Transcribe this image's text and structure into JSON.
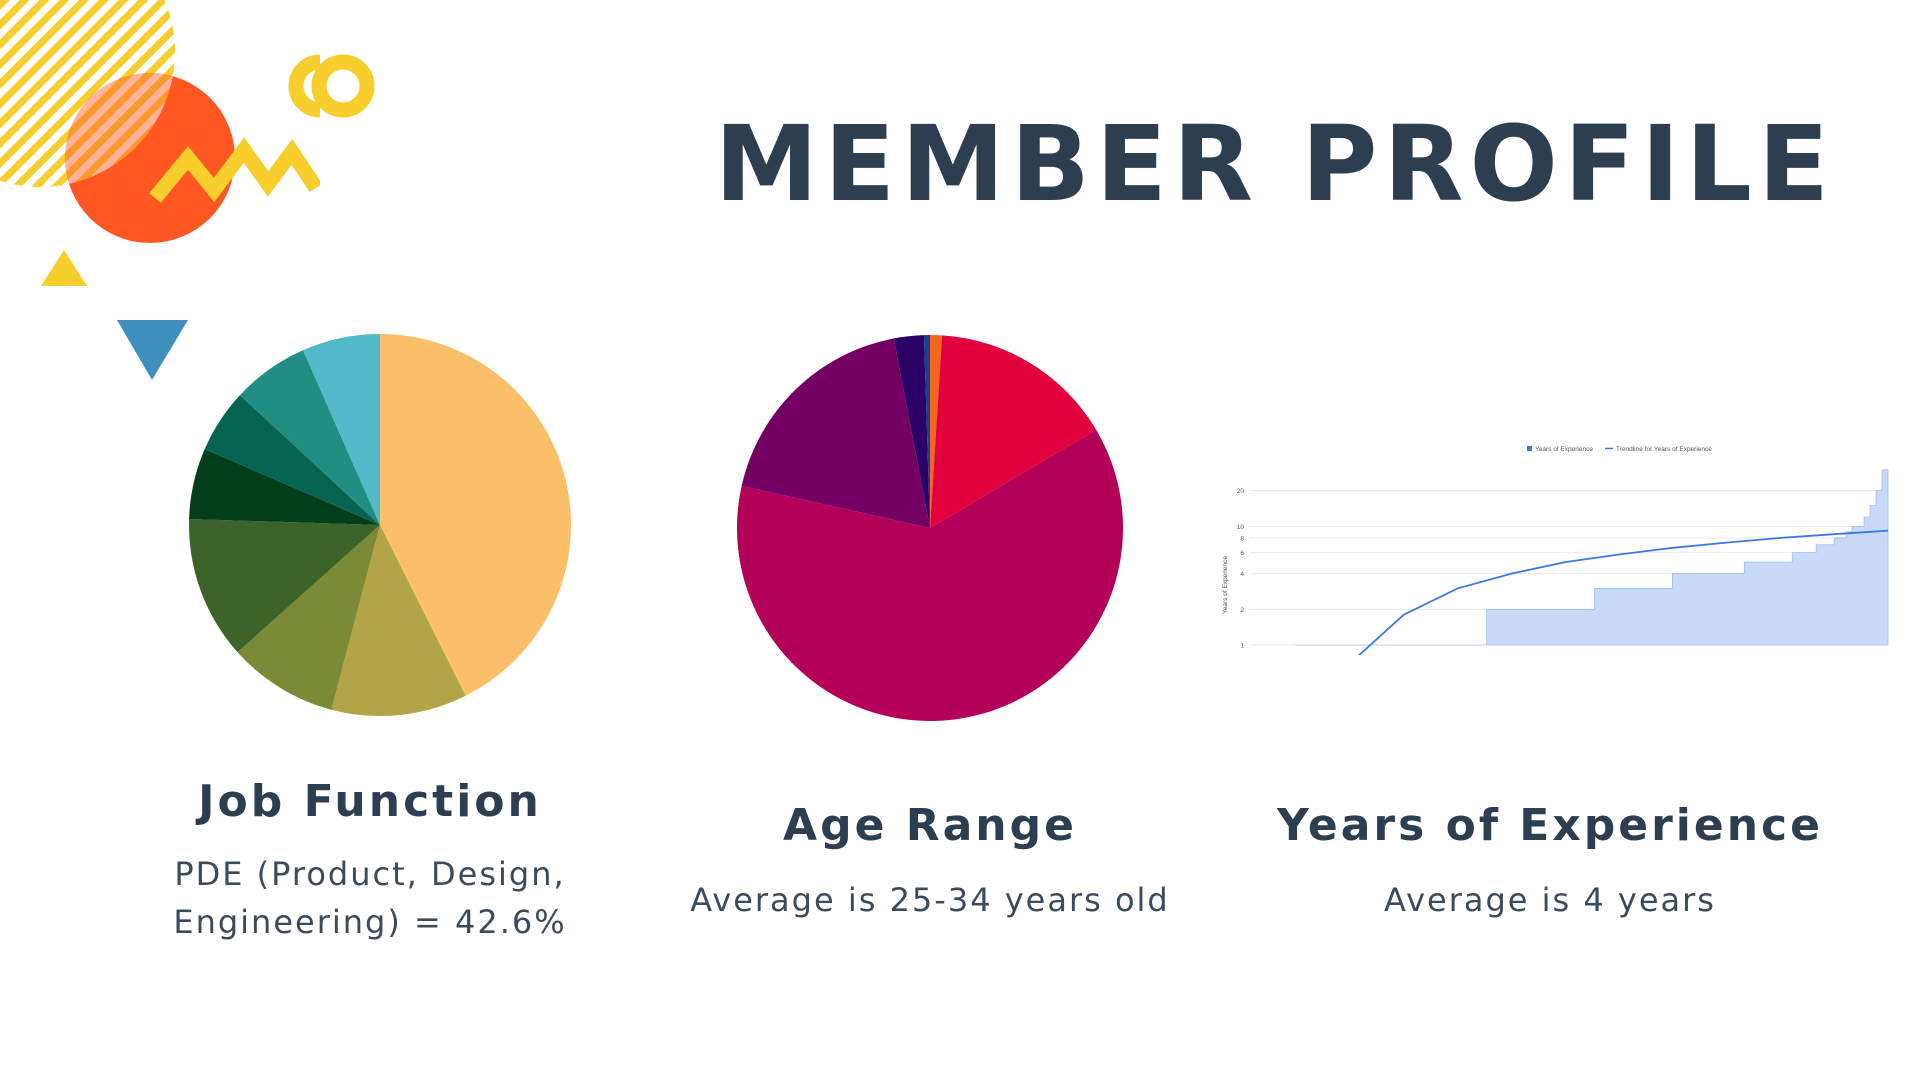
{
  "page": {
    "title": "MEMBER PROFILE",
    "accent_colors": [
      "#f7ce2c",
      "#ff5722",
      "#3f8fbf",
      "#2d3e50"
    ]
  },
  "sections": [
    {
      "title": "Job Function",
      "subtitle": "PDE (Product, Design, Engineering) = 42.6%"
    },
    {
      "title": "Age Range",
      "subtitle": "Average is 25-34 years old"
    },
    {
      "title": "Years of Experience",
      "subtitle": "Average is 4 years"
    }
  ],
  "chart_data": [
    {
      "type": "pie",
      "title": "",
      "values": [
        42.6,
        11.5,
        9.3,
        12.1,
        6.0,
        5.4,
        6.5,
        6.6
      ],
      "colors": [
        "#fbbf69",
        "#b3a448",
        "#7b8a36",
        "#3c6428",
        "#033e1c",
        "#056450",
        "#218e84",
        "#53b8c7"
      ]
    },
    {
      "type": "pie",
      "title": "",
      "values": [
        1.0,
        15.5,
        62.0,
        18.5,
        2.5,
        0.5
      ],
      "colors": [
        "#f4651e",
        "#e2003f",
        "#b40058",
        "#750063",
        "#2b0066",
        "#1a3f8f"
      ]
    },
    {
      "type": "area",
      "title": "",
      "xlabel": "",
      "ylabel": "Years of Experience",
      "y_scale": "log",
      "y_ticks": [
        1,
        2,
        4,
        6,
        8,
        10,
        20
      ],
      "ylim": [
        1,
        40
      ],
      "legend": {
        "position": "top",
        "entries": [
          "Years of Experience",
          "Trendline for Years of Experience"
        ]
      },
      "series": [
        {
          "name": "Years of Experience",
          "kind": "area",
          "color": "#c9daf8",
          "values": [
            1,
            1,
            1,
            1,
            1,
            1,
            1,
            1,
            1,
            1,
            1,
            1,
            1,
            1,
            1,
            1,
            1,
            1,
            1,
            1,
            1,
            1,
            1,
            1,
            1,
            1,
            1,
            1,
            1,
            1,
            1,
            1,
            2,
            2,
            2,
            2,
            2,
            2,
            2,
            2,
            2,
            2,
            2,
            2,
            2,
            2,
            2,
            2,
            2,
            2,
            3,
            3,
            3,
            3,
            3,
            3,
            3,
            3,
            3,
            3,
            3,
            3,
            3,
            4,
            4,
            4,
            4,
            4,
            4,
            4,
            4,
            4,
            4,
            4,
            4,
            5,
            5,
            5,
            5,
            5,
            5,
            5,
            5,
            6,
            6,
            6,
            6,
            7,
            7,
            7,
            8,
            8,
            9,
            10,
            10,
            12,
            15,
            20,
            30
          ]
        },
        {
          "name": "Trendline for Years of Experience",
          "kind": "line",
          "color": "#3b78e7",
          "values": [
            0.7,
            1.8,
            3.0,
            4.0,
            5.0,
            5.8,
            6.6,
            7.3,
            8.0,
            8.6,
            9.2
          ]
        }
      ]
    }
  ]
}
